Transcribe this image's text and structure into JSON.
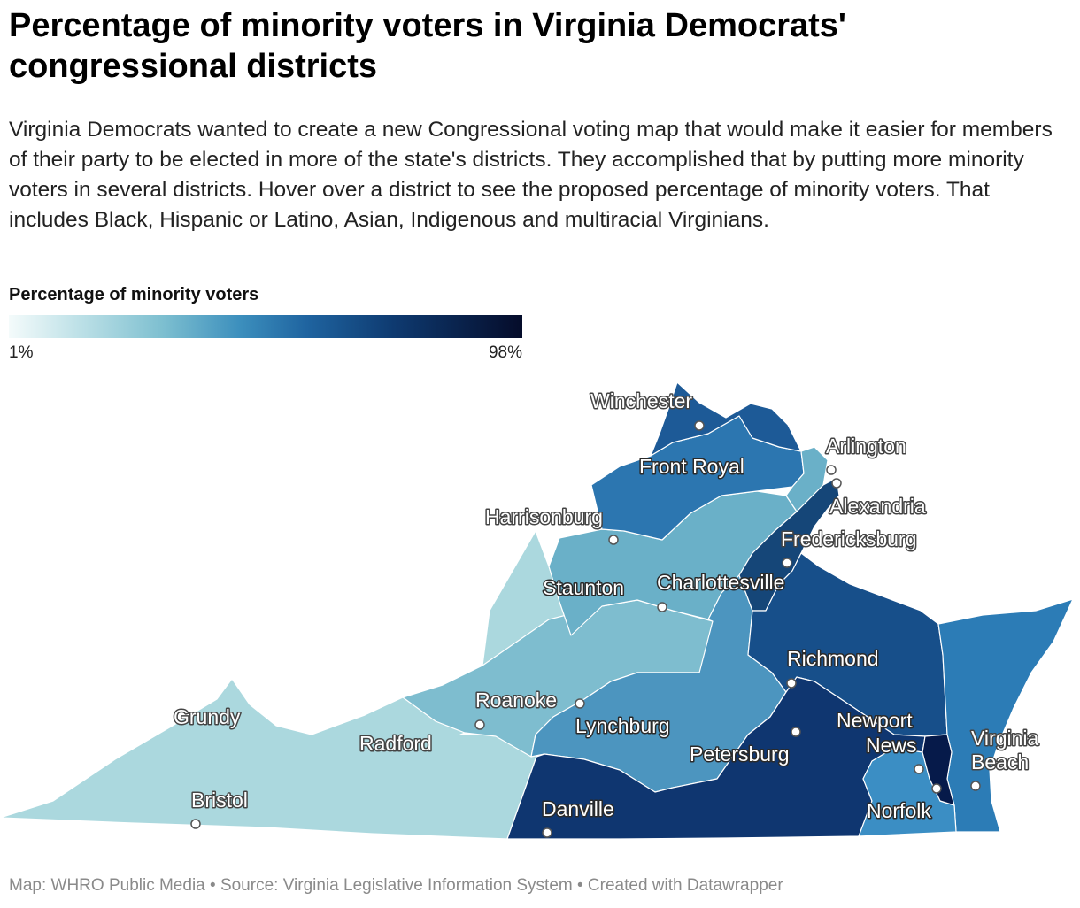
{
  "header": {
    "title": "Percentage of minority voters in Virginia Democrats' congressional districts",
    "description": "Virginia Democrats wanted to create a new Congressional voting map that would make it easier for members of their party to be elected in more of the state's districts. They accomplished that by putting more minority voters in several districts. Hover over a district to see the proposed percentage of minority voters. That includes Black, Hispanic or Latino, Asian, Indigenous and multiracial Virginians."
  },
  "legend": {
    "title": "Percentage of minority voters",
    "min_label": "1%",
    "max_label": "98%",
    "colors": [
      "#f4fbfb",
      "#b8dee5",
      "#7dbfd0",
      "#3c8fbd",
      "#1f64a0",
      "#0e3a70",
      "#050c2a"
    ]
  },
  "map": {
    "districts": [
      {
        "name": "southwest",
        "color": "#abd8de"
      },
      {
        "name": "roanoke-lynchburg",
        "color": "#7ebdcf"
      },
      {
        "name": "shenandoah",
        "color": "#6ab0c8"
      },
      {
        "name": "central",
        "color": "#4c95bf"
      },
      {
        "name": "northwest",
        "color": "#2c76b0"
      },
      {
        "name": "north",
        "color": "#1d5a97"
      },
      {
        "name": "outer-northern-virginia",
        "color": "#6ab0c8"
      },
      {
        "name": "prince-william",
        "color": "#154678"
      },
      {
        "name": "richmond-peninsula",
        "color": "#174f8a"
      },
      {
        "name": "southside",
        "color": "#0f3670"
      },
      {
        "name": "eastern-shore-va-beach",
        "color": "#2c7cb6"
      },
      {
        "name": "hampton-roads",
        "color": "#3b8ec4"
      },
      {
        "name": "norfolk-core",
        "color": "#061a4a"
      }
    ],
    "cities": [
      {
        "name": "Winchester",
        "style": "light"
      },
      {
        "name": "Front Royal",
        "style": "dark"
      },
      {
        "name": "Arlington",
        "style": "light"
      },
      {
        "name": "Alexandria",
        "style": "light"
      },
      {
        "name": "Harrisonburg",
        "style": "light"
      },
      {
        "name": "Fredericksburg",
        "style": "light"
      },
      {
        "name": "Staunton",
        "style": "dark"
      },
      {
        "name": "Charlottesville",
        "style": "dark"
      },
      {
        "name": "Richmond",
        "style": "dark"
      },
      {
        "name": "Roanoke",
        "style": "light"
      },
      {
        "name": "Grundy",
        "style": "light"
      },
      {
        "name": "Radford",
        "style": "light"
      },
      {
        "name": "Lynchburg",
        "style": "dark"
      },
      {
        "name": "Petersburg",
        "style": "dark"
      },
      {
        "name": "Newport",
        "style": "dark"
      },
      {
        "name": "News",
        "style": "dark"
      },
      {
        "name": "Virginia",
        "style": "light"
      },
      {
        "name": "Beach",
        "style": "light"
      },
      {
        "name": "Bristol",
        "style": "light"
      },
      {
        "name": "Danville",
        "style": "dark"
      },
      {
        "name": "Norfolk",
        "style": "dark"
      }
    ]
  },
  "footer": {
    "credit": "Map: WHRO Public Media • Source: Virginia Legislative Information System • Created with Datawrapper"
  }
}
